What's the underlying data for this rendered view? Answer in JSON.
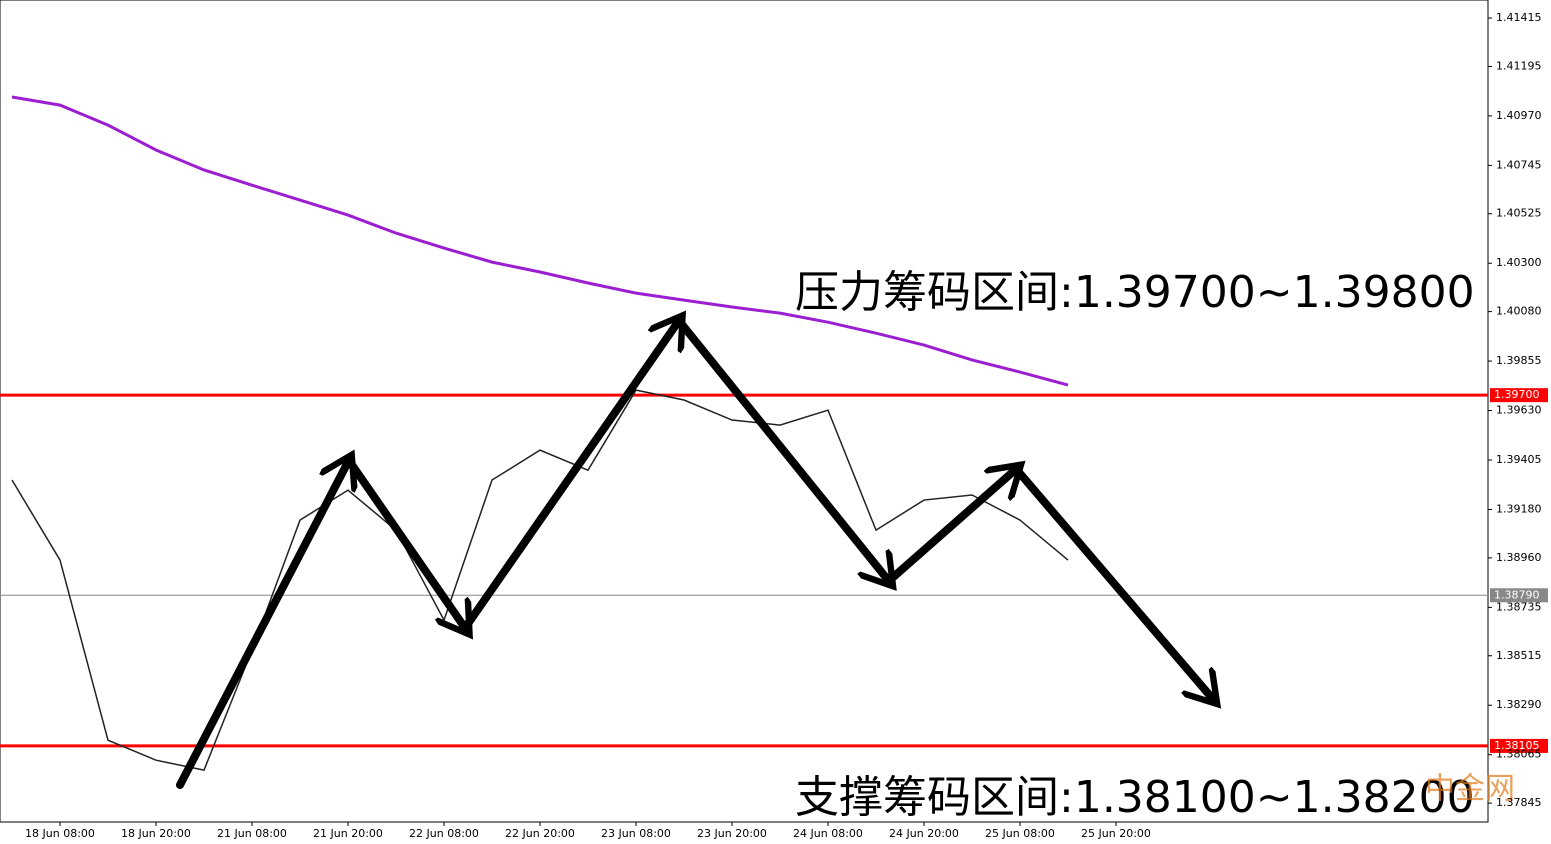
{
  "chart_data": {
    "type": "line",
    "annotations": [
      "压力筹码区间:1.39700~1.39800",
      "支撑筹码区间:1.38100~1.38200"
    ],
    "watermark": "中金网",
    "categories": [
      null,
      "18 Jun 08:00",
      null,
      "18 Jun 20:00",
      null,
      "21 Jun 08:00",
      null,
      "21 Jun 20:00",
      null,
      "22 Jun 08:00",
      null,
      "22 Jun 20:00",
      null,
      "23 Jun 08:00",
      null,
      "23 Jun 20:00",
      null,
      "24 Jun 08:00",
      null,
      "24 Jun 20:00",
      null,
      "25 Jun 08:00",
      null,
      "25 Jun 20:00"
    ],
    "series": [
      {
        "color": "#222222",
        "values": [
          1.39314,
          1.3895,
          1.38131,
          1.3804,
          1.37995,
          1.38541,
          1.39132,
          1.39268,
          1.39086,
          1.38677,
          1.39314,
          1.3945,
          1.39359,
          1.39723,
          1.39678,
          1.39587,
          1.39564,
          1.39632,
          1.39086,
          1.39223,
          1.39246,
          1.39132,
          1.3895,
          null
        ]
      },
      {
        "color": "#9b1fd1",
        "values": [
          1.41056,
          1.41019,
          1.40928,
          1.40815,
          1.40724,
          1.40655,
          1.40587,
          1.40519,
          1.40437,
          1.40369,
          1.40305,
          1.4026,
          1.4021,
          1.40164,
          1.40132,
          1.40101,
          1.40073,
          1.40032,
          1.39982,
          1.39928,
          1.3986,
          1.39805,
          1.39746,
          null
        ]
      }
    ],
    "hlines": [
      {
        "value": 1.397,
        "label": "1.39700",
        "color": "#ff0000"
      },
      {
        "value": 1.3879,
        "label": "1.38790",
        "color": "#888888"
      },
      {
        "value": 1.38105,
        "label": "1.38105",
        "color": "#ff0000"
      }
    ],
    "ylim": [
      1.37759,
      1.41497
    ],
    "yticks": [
      1.41415,
      1.41195,
      {
        "value": 1.4097,
        "label": "1.40970"
      },
      1.40745,
      1.40525,
      {
        "value": 1.403,
        "label": "1.40300"
      },
      {
        "value": 1.4008,
        "label": "1.40080"
      },
      1.39855,
      {
        "value": 1.3963,
        "label": "1.39630"
      },
      1.39405,
      {
        "value": 1.3918,
        "label": "1.39180"
      },
      {
        "value": 1.3896,
        "label": "1.38960"
      },
      1.38735,
      1.38515,
      {
        "value": 1.3829,
        "label": "1.38290"
      },
      1.38065,
      1.37845
    ]
  }
}
